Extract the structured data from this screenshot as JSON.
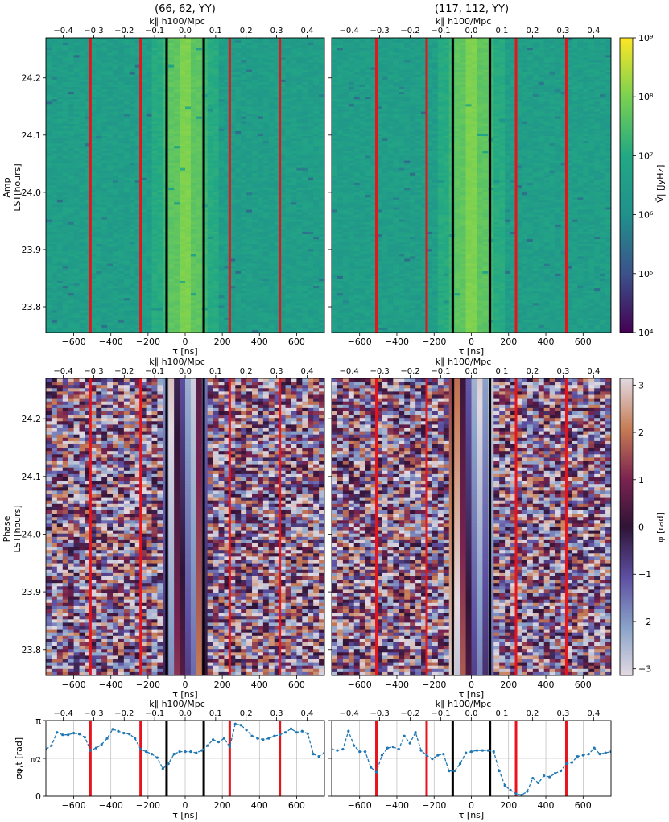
{
  "titles": [
    "(66, 62, YY)",
    "(117, 112, YY)"
  ],
  "row_labels": {
    "amp": [
      "Amp",
      "LST[hours]"
    ],
    "phase": [
      "Phase",
      "LST[hours]"
    ]
  },
  "x_label": "τ [ns]",
  "top_axis_label": "k∥ h100/Mpc",
  "colorbars": {
    "amp": {
      "label": "|Ṽ| [JyHz]",
      "ticks": [
        "10⁹",
        "10⁸",
        "10⁷",
        "10⁶",
        "10⁵",
        "10⁴"
      ],
      "log_range": [
        4,
        9
      ]
    },
    "phase": {
      "label": "φ [rad]",
      "ticks": [
        "3",
        "2",
        "1",
        "0",
        "−1",
        "−2",
        "−3"
      ],
      "range": [
        -3.14159,
        3.14159
      ]
    }
  },
  "chart_data": [
    {
      "type": "heatmap",
      "panel": "amp-left",
      "title": "(66, 62, YY)",
      "xlabel": "τ [ns]",
      "ylabel": "LST[hours]",
      "xlim": [
        -750,
        750
      ],
      "ylim": [
        23.755,
        24.27
      ],
      "x_ticks": [
        -600,
        -400,
        -200,
        0,
        200,
        400,
        600
      ],
      "y_ticks": [
        23.8,
        23.9,
        24.0,
        24.1,
        24.2
      ],
      "top_ticks": [
        "-0.4",
        "-0.3",
        "-0.2",
        "-0.1",
        "0.0",
        "0.1",
        "0.2",
        "0.3",
        "0.4"
      ],
      "vlines_red": [
        -510,
        -240,
        240,
        510
      ],
      "vlines_black": [
        -100,
        100
      ],
      "colorscale": "log amplitude 10^4–10^9 (viridis)"
    },
    {
      "type": "heatmap",
      "panel": "amp-right",
      "title": "(117, 112, YY)",
      "xlabel": "τ [ns]",
      "xlim": [
        -750,
        750
      ],
      "ylim": [
        23.755,
        24.27
      ],
      "x_ticks": [
        -600,
        -400,
        -200,
        0,
        200,
        400,
        600
      ],
      "top_ticks": [
        "-0.4",
        "-0.3",
        "-0.2",
        "-0.1",
        "0.0",
        "0.1",
        "0.2",
        "0.3",
        "0.4"
      ],
      "vlines_red": [
        -510,
        -240,
        240,
        510
      ],
      "vlines_black": [
        -100,
        100
      ],
      "colorscale": "log amplitude 10^4–10^9 (viridis)"
    },
    {
      "type": "heatmap",
      "panel": "phase-left",
      "xlabel": "τ [ns]",
      "ylabel": "LST[hours]",
      "xlim": [
        -750,
        750
      ],
      "ylim": [
        23.755,
        24.27
      ],
      "x_ticks": [
        -600,
        -400,
        -200,
        0,
        200,
        400,
        600
      ],
      "y_ticks": [
        23.8,
        23.9,
        24.0,
        24.1,
        24.2
      ],
      "top_ticks": [
        "-0.4",
        "-0.3",
        "-0.2",
        "-0.1",
        "0.0",
        "0.1",
        "0.2",
        "0.3",
        "0.4"
      ],
      "vlines_red": [
        -510,
        -240,
        240,
        510
      ],
      "vlines_black": [
        -100,
        100
      ],
      "colorscale": "phase −π to π (twilight)"
    },
    {
      "type": "heatmap",
      "panel": "phase-right",
      "xlabel": "τ [ns]",
      "xlim": [
        -750,
        750
      ],
      "ylim": [
        23.755,
        24.27
      ],
      "x_ticks": [
        -600,
        -400,
        -200,
        0,
        200,
        400,
        600
      ],
      "top_ticks": [
        "-0.4",
        "-0.3",
        "-0.2",
        "-0.1",
        "0.0",
        "0.1",
        "0.2",
        "0.3",
        "0.4"
      ],
      "vlines_red": [
        -510,
        -240,
        240,
        510
      ],
      "vlines_black": [
        -100,
        100
      ],
      "colorscale": "phase −π to π (twilight)"
    },
    {
      "type": "line",
      "panel": "sigma-left",
      "xlabel": "τ [ns]",
      "ylabel": "σφ,t [rad]",
      "xlim": [
        -750,
        750
      ],
      "ylim": [
        0,
        3.14159
      ],
      "y_tick_labels": [
        "0",
        "π/2",
        "π"
      ],
      "x_ticks": [
        -600,
        -400,
        -200,
        0,
        200,
        400,
        600
      ],
      "top_ticks": [
        "-0.4",
        "-0.3",
        "-0.2",
        "-0.1",
        "0.0",
        "0.1",
        "0.2",
        "0.3",
        "0.4"
      ],
      "vlines_red": [
        -510,
        -240,
        240,
        510
      ],
      "vlines_black": [
        -100,
        100
      ],
      "grid": true,
      "x": [
        -750,
        -720,
        -690,
        -660,
        -630,
        -600,
        -570,
        -540,
        -510,
        -480,
        -450,
        -420,
        -390,
        -360,
        -330,
        -300,
        -270,
        -240,
        -210,
        -180,
        -150,
        -120,
        -90,
        -60,
        -30,
        0,
        30,
        60,
        90,
        120,
        150,
        180,
        210,
        240,
        270,
        300,
        330,
        360,
        390,
        420,
        450,
        480,
        510,
        540,
        570,
        600,
        630,
        660,
        690,
        720,
        750
      ],
      "y": [
        1.95,
        2.1,
        2.65,
        2.55,
        2.55,
        2.62,
        2.58,
        2.45,
        1.9,
        2.0,
        2.15,
        2.4,
        2.78,
        2.7,
        2.62,
        2.58,
        2.4,
        1.95,
        1.85,
        1.75,
        1.6,
        1.15,
        1.35,
        1.75,
        1.85,
        1.85,
        1.85,
        1.8,
        1.9,
        2.1,
        2.35,
        2.25,
        2.4,
        2.05,
        3.0,
        2.95,
        2.75,
        2.5,
        2.4,
        2.35,
        2.4,
        2.5,
        2.55,
        2.65,
        2.8,
        2.65,
        2.7,
        2.6,
        1.75,
        1.65,
        1.8
      ]
    },
    {
      "type": "line",
      "panel": "sigma-right",
      "xlabel": "τ [ns]",
      "xlim": [
        -750,
        750
      ],
      "ylim": [
        0,
        3.14159
      ],
      "x_ticks": [
        -600,
        -400,
        -200,
        0,
        200,
        400,
        600
      ],
      "top_ticks": [
        "-0.4",
        "-0.3",
        "-0.2",
        "-0.1",
        "0.0",
        "0.1",
        "0.2",
        "0.3",
        "0.4"
      ],
      "vlines_red": [
        -510,
        -240,
        240,
        510
      ],
      "vlines_black": [
        -100,
        100
      ],
      "grid": true,
      "x": [
        -750,
        -720,
        -690,
        -660,
        -630,
        -600,
        -570,
        -540,
        -510,
        -480,
        -450,
        -420,
        -390,
        -360,
        -330,
        -300,
        -270,
        -240,
        -210,
        -180,
        -150,
        -120,
        -90,
        -60,
        -30,
        0,
        30,
        60,
        90,
        120,
        150,
        180,
        210,
        240,
        270,
        300,
        330,
        360,
        390,
        420,
        450,
        480,
        510,
        540,
        570,
        600,
        630,
        660,
        690,
        720,
        750
      ],
      "y": [
        1.95,
        1.9,
        1.95,
        2.7,
        2.1,
        1.85,
        1.85,
        1.2,
        1.0,
        1.7,
        2.0,
        2.05,
        1.95,
        2.5,
        2.2,
        2.65,
        1.9,
        1.7,
        1.55,
        1.7,
        1.75,
        1.05,
        1.05,
        1.35,
        1.8,
        1.85,
        1.9,
        1.9,
        1.9,
        1.85,
        1.05,
        0.45,
        0.25,
        0.1,
        0.05,
        0.2,
        0.75,
        0.55,
        0.85,
        0.8,
        0.95,
        1.05,
        1.35,
        1.4,
        1.65,
        1.7,
        1.75,
        2.0,
        1.75,
        1.8,
        1.85
      ]
    }
  ]
}
